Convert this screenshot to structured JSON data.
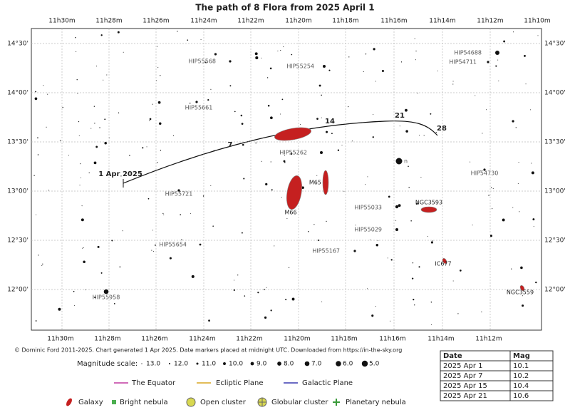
{
  "title": "The path of 8 Flora from 2025 April 1",
  "ra_top": [
    "11h30m",
    "11h28m",
    "11h26m",
    "11h24m",
    "11h22m",
    "11h20m",
    "11h18m",
    "11h16m",
    "11h14m",
    "11h12m",
    "11h10m"
  ],
  "ra_bottom": [
    "11h30m",
    "11h28m",
    "11h26m",
    "11h24m",
    "11h22m",
    "11h20m",
    "11h18m",
    "11h16m",
    "11h14m",
    "11h12m"
  ],
  "dec_left": [
    "14°30'",
    "14°00'",
    "13°30'",
    "13°00'",
    "12°30'",
    "12°00'"
  ],
  "dec_right": [
    "14°30'",
    "14°00'",
    "13°30'",
    "13°00'",
    "12°30'",
    "12°00'"
  ],
  "date_markers": [
    "1 Apr 2025",
    "7",
    "14",
    "21",
    "28"
  ],
  "stars": [
    "HIP55568",
    "HIP55254",
    "HIP54688",
    "HIP54711",
    "HIP55661",
    "HIP55262",
    "n",
    "HIP54730",
    "HIP55721",
    "HIP55033",
    "HIP55029",
    "HIP55654",
    "HIP55167",
    "HIP55958"
  ],
  "galaxies": [
    "M66",
    "M65",
    "NGC3593",
    "IC677",
    "NGC3559"
  ],
  "credit": "© Dominic Ford 2011-2025. Chart generated 1 Apr 2025. Date markers placed at midnight UTC. Downloaded from https://in-the-sky.org",
  "magnitude_scale": {
    "label": "Magnitude scale:",
    "items": [
      "13.0",
      "12.0",
      "11.0",
      "10.0",
      "9.0",
      "8.0",
      "7.0",
      "6.0",
      "5.0"
    ]
  },
  "legend_lines": [
    "The Equator",
    "Ecliptic Plane",
    "Galactic Plane"
  ],
  "legend_symbols": [
    "Galaxy",
    "Bright nebula",
    "Open cluster",
    "Globular cluster",
    "Planetary nebula"
  ],
  "table": {
    "header": [
      "Date",
      "Mag"
    ],
    "rows": [
      [
        "2025 Apr 1",
        "10.1"
      ],
      [
        "2025 Apr 7",
        "10.2"
      ],
      [
        "2025 Apr 15",
        "10.4"
      ],
      [
        "2025 Apr 21",
        "10.6"
      ]
    ]
  }
}
